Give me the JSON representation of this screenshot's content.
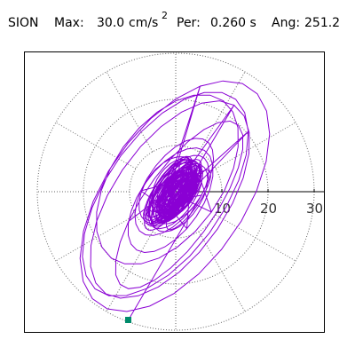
{
  "header": {
    "station": "SION",
    "max_label": "Max:",
    "max_value": "30.0",
    "max_unit": "cm/s",
    "max_unit_exp": "2",
    "period_label": "Per:",
    "period_value": "0.260 s",
    "angle_label": "Ang:",
    "angle_value": "251.2"
  },
  "plot": {
    "radial_ticks": [
      "10",
      "20",
      "30"
    ],
    "trace_color": "#8a00d4",
    "end_marker_color": "#008b6b"
  }
}
